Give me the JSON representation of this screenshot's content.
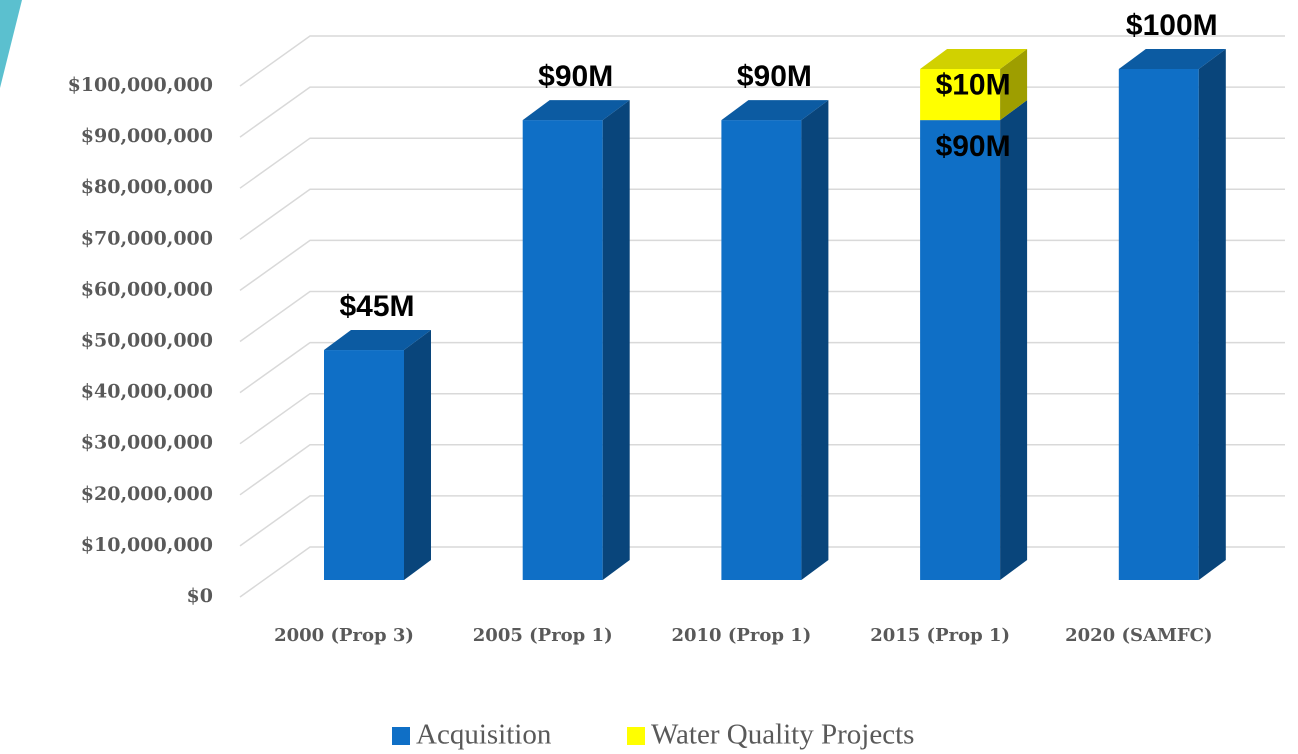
{
  "chart_data": {
    "type": "bar3d_stacked",
    "categories": [
      "2000 (Prop 3)",
      "2005 (Prop 1)",
      "2010 (Prop 1)",
      "2015 (Prop 1)",
      "2020 (SAMFC)"
    ],
    "series": [
      {
        "name": "Acquisition",
        "color": "#0f6fc6",
        "values": [
          45000000,
          90000000,
          90000000,
          90000000,
          100000000
        ],
        "value_labels": [
          "$45M",
          "$90M",
          "$90M",
          "$90M",
          "$100M"
        ]
      },
      {
        "name": "Water Quality Projects",
        "color": "#ffff00",
        "values": [
          null,
          null,
          null,
          10000000,
          null
        ],
        "value_labels": [
          null,
          null,
          null,
          "$10M",
          null
        ]
      }
    ],
    "ylim": [
      0,
      100000000
    ],
    "yticks": [
      {
        "value": 0,
        "label": "$0"
      },
      {
        "value": 10000000,
        "label": "$10,000,000"
      },
      {
        "value": 20000000,
        "label": "$20,000,000"
      },
      {
        "value": 30000000,
        "label": "$30,000,000"
      },
      {
        "value": 40000000,
        "label": "$40,000,000"
      },
      {
        "value": 50000000,
        "label": "$50,000,000"
      },
      {
        "value": 60000000,
        "label": "$60,000,000"
      },
      {
        "value": 70000000,
        "label": "$70,000,000"
      },
      {
        "value": 80000000,
        "label": "$80,000,000"
      },
      {
        "value": 90000000,
        "label": "$90,000,000"
      },
      {
        "value": 100000000,
        "label": "$100,000,000"
      }
    ],
    "grid": true,
    "legend": "bottom"
  }
}
